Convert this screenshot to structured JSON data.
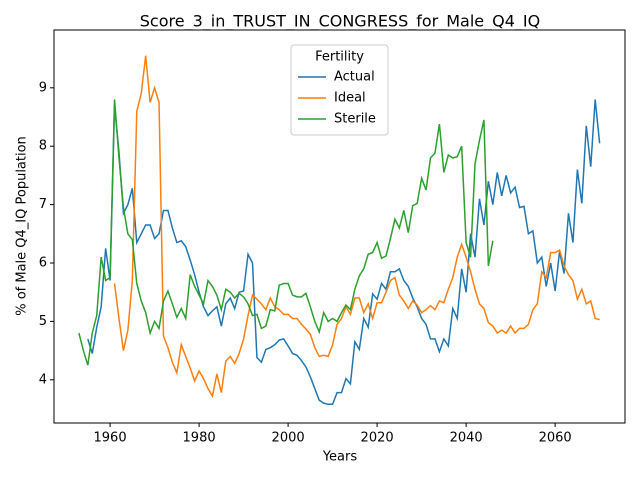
{
  "chart_data": {
    "type": "line",
    "title": "Score_3_in_TRUST_IN_CONGRESS_for_Male_Q4_IQ",
    "x_label": "Years",
    "y_label": "% of Male Q4_IQ Population",
    "legend_title": "Fertility",
    "legend_position": "upper center",
    "grid": false,
    "xlim": [
      1947.4,
      2075.7
    ],
    "ylim": [
      3.26,
      9.99
    ],
    "xticks": [
      1960,
      1980,
      2000,
      2020,
      2040,
      2060
    ],
    "yticks": [
      4,
      5,
      6,
      7,
      8,
      9
    ],
    "x": [
      1953,
      1954,
      1955,
      1956,
      1957,
      1958,
      1959,
      1960,
      1961,
      1962,
      1963,
      1964,
      1965,
      1966,
      1967,
      1968,
      1969,
      1970,
      1971,
      1972,
      1973,
      1974,
      1975,
      1976,
      1977,
      1978,
      1979,
      1980,
      1981,
      1982,
      1983,
      1984,
      1985,
      1986,
      1987,
      1988,
      1989,
      1990,
      1991,
      1992,
      1993,
      1994,
      1995,
      1996,
      1997,
      1998,
      1999,
      2000,
      2001,
      2002,
      2003,
      2004,
      2005,
      2006,
      2007,
      2008,
      2009,
      2010,
      2011,
      2012,
      2013,
      2014,
      2015,
      2016,
      2017,
      2018,
      2019,
      2020,
      2021,
      2022,
      2023,
      2024,
      2025,
      2026,
      2027,
      2028,
      2029,
      2030,
      2031,
      2032,
      2033,
      2034,
      2035,
      2036,
      2037,
      2038,
      2039,
      2040,
      2041,
      2042,
      2043,
      2044,
      2045,
      2046,
      2047,
      2048,
      2049,
      2050,
      2051,
      2052,
      2053,
      2054,
      2055,
      2056,
      2057,
      2058,
      2059,
      2060,
      2061,
      2062,
      2063,
      2064,
      2065,
      2066,
      2067,
      2068,
      2069,
      2070
    ],
    "series": [
      {
        "name": "Actual",
        "color": "#1f77b4",
        "values": [
          null,
          null,
          4.7,
          4.45,
          4.9,
          5.25,
          6.25,
          5.7,
          8.7,
          7.9,
          6.85,
          7.0,
          7.28,
          6.35,
          6.5,
          6.65,
          6.65,
          6.42,
          6.5,
          6.9,
          6.9,
          6.6,
          6.35,
          6.38,
          6.28,
          6.05,
          5.8,
          5.5,
          5.25,
          5.1,
          5.18,
          5.25,
          4.92,
          5.3,
          5.4,
          5.22,
          5.5,
          5.52,
          6.15,
          6.0,
          4.38,
          4.3,
          4.52,
          4.55,
          4.6,
          4.68,
          4.7,
          4.58,
          4.45,
          4.42,
          4.33,
          4.22,
          4.05,
          3.85,
          3.65,
          3.6,
          3.58,
          3.58,
          3.78,
          3.78,
          4.02,
          3.93,
          4.65,
          4.52,
          5.05,
          4.9,
          5.47,
          5.38,
          5.65,
          5.55,
          5.85,
          5.85,
          5.9,
          5.7,
          5.6,
          5.4,
          5.25,
          5.05,
          4.95,
          4.7,
          4.7,
          4.48,
          4.7,
          4.58,
          5.22,
          5.05,
          5.9,
          5.5,
          6.5,
          6.1,
          7.1,
          6.65,
          7.4,
          7.0,
          7.55,
          7.15,
          7.5,
          7.2,
          7.3,
          6.95,
          6.97,
          6.5,
          6.55,
          6.0,
          6.1,
          5.6,
          6.0,
          5.52,
          6.2,
          5.82,
          6.85,
          6.35,
          7.6,
          7.02,
          8.35,
          7.65,
          8.8,
          8.05
        ]
      },
      {
        "name": "Ideal",
        "color": "#ff7f0e",
        "values": [
          null,
          null,
          null,
          null,
          null,
          null,
          null,
          null,
          5.65,
          5.05,
          4.5,
          4.85,
          5.7,
          8.6,
          8.9,
          9.55,
          8.75,
          9.0,
          8.75,
          4.75,
          4.55,
          4.3,
          4.12,
          4.6,
          4.4,
          4.2,
          3.98,
          4.15,
          4.02,
          3.85,
          3.72,
          4.1,
          3.78,
          4.32,
          4.4,
          4.28,
          4.45,
          4.7,
          5.1,
          5.45,
          5.38,
          5.3,
          5.2,
          5.4,
          5.25,
          5.2,
          5.12,
          5.12,
          5.05,
          5.05,
          4.95,
          4.87,
          4.78,
          4.55,
          4.4,
          4.42,
          4.4,
          4.6,
          4.95,
          5.05,
          5.25,
          5.12,
          5.4,
          5.4,
          5.15,
          5.3,
          5.05,
          5.32,
          5.32,
          5.5,
          5.7,
          5.75,
          5.45,
          5.35,
          5.22,
          5.35,
          5.28,
          5.15,
          5.2,
          5.27,
          5.2,
          5.35,
          5.32,
          5.55,
          5.75,
          6.1,
          6.32,
          6.1,
          5.85,
          5.55,
          5.3,
          5.22,
          4.98,
          4.92,
          4.8,
          4.85,
          4.8,
          4.92,
          4.8,
          4.88,
          4.88,
          4.95,
          5.2,
          5.3,
          5.85,
          5.75,
          6.18,
          6.18,
          6.22,
          5.95,
          5.8,
          5.7,
          5.38,
          5.55,
          5.3,
          5.35,
          5.05,
          5.03
        ]
      },
      {
        "name": "Sterile",
        "color": "#2ca02c",
        "values": [
          4.8,
          4.5,
          4.25,
          4.8,
          5.1,
          6.1,
          5.7,
          5.75,
          8.8,
          7.8,
          6.95,
          6.5,
          6.4,
          5.65,
          5.35,
          5.15,
          4.8,
          5.0,
          4.88,
          5.35,
          5.52,
          5.3,
          5.07,
          5.22,
          5.05,
          5.8,
          5.6,
          5.45,
          5.3,
          5.7,
          5.6,
          5.45,
          5.2,
          5.55,
          5.5,
          5.4,
          5.48,
          5.42,
          5.3,
          5.1,
          5.12,
          4.88,
          4.92,
          5.2,
          5.18,
          5.62,
          5.65,
          5.65,
          5.45,
          5.42,
          5.42,
          5.48,
          5.25,
          5.0,
          4.82,
          5.15,
          5.0,
          5.05,
          5.0,
          5.15,
          5.28,
          5.2,
          5.55,
          5.78,
          5.9,
          6.15,
          6.18,
          6.35,
          6.08,
          6.12,
          6.42,
          6.75,
          6.6,
          6.9,
          6.52,
          6.98,
          7.02,
          7.45,
          7.25,
          7.8,
          7.88,
          8.38,
          7.55,
          7.85,
          7.8,
          7.82,
          8.0,
          6.35,
          6.1,
          7.7,
          8.1,
          8.45,
          5.95,
          6.38,
          null,
          null,
          null,
          null,
          null,
          null,
          null,
          null,
          null,
          null,
          null,
          null,
          null,
          null,
          null,
          null,
          null,
          null,
          null,
          null,
          null,
          null,
          null,
          null
        ]
      }
    ]
  }
}
